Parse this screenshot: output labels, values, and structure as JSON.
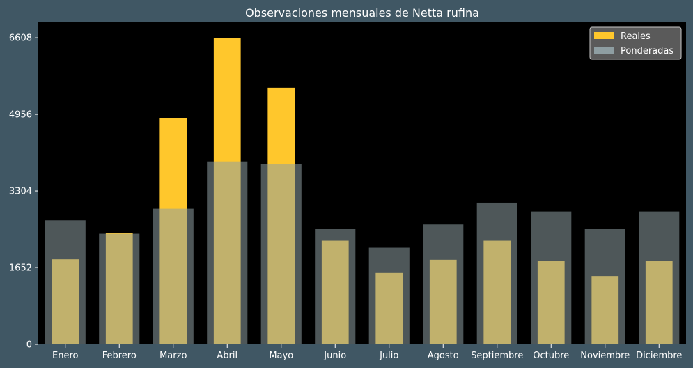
{
  "chart_data": {
    "type": "bar",
    "title": "Observaciones mensuales de Netta rufina",
    "xlabel": "",
    "ylabel": "",
    "categories": [
      "Enero",
      "Febrero",
      "Marzo",
      "Abril",
      "Mayo",
      "Junio",
      "Julio",
      "Agosto",
      "Septiembre",
      "Octubre",
      "Noviembre",
      "Diciembre"
    ],
    "series": [
      {
        "name": "Reales",
        "color": "#ffc72c",
        "values": [
          1830,
          2400,
          4870,
          6608,
          5530,
          2230,
          1550,
          1820,
          2230,
          1790,
          1470,
          1790
        ]
      },
      {
        "name": "Ponderadas",
        "color": "#8e9ea2",
        "values": [
          2670,
          2380,
          2920,
          3940,
          3890,
          2480,
          2080,
          2580,
          3050,
          2860,
          2490,
          2860
        ]
      }
    ],
    "yticks": [
      0,
      1652,
      3304,
      4956,
      6608
    ],
    "ylim": [
      0,
      6940
    ],
    "grid": false,
    "legend_position": "top-right"
  },
  "colors": {
    "figure_background": "#405764",
    "plot_background": "#000000",
    "text": "#ffffff",
    "legend_background": "#5a5a5a"
  }
}
